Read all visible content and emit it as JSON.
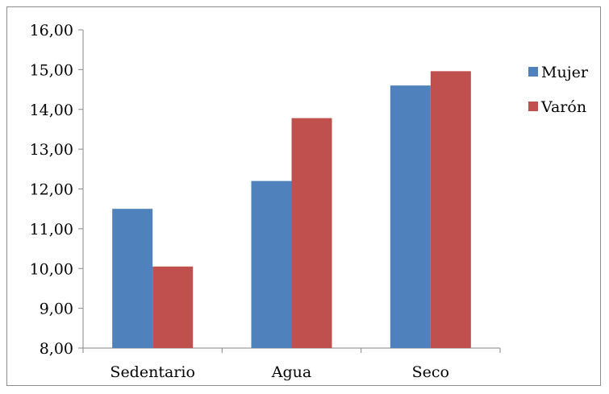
{
  "chart_data": {
    "type": "bar",
    "title": "",
    "xlabel": "",
    "ylabel": "",
    "categories": [
      "Sedentario",
      "Agua",
      "Seco"
    ],
    "series": [
      {
        "name": "Mujer",
        "color": "#4f81bd",
        "values": [
          11.5,
          12.2,
          14.6
        ]
      },
      {
        "name": "Varón",
        "color": "#c0504d",
        "values": [
          10.05,
          13.78,
          14.96
        ]
      }
    ],
    "ylim": [
      8,
      16
    ],
    "yticks": [
      "8,00",
      "9,00",
      "10,00",
      "11,00",
      "12,00",
      "13,00",
      "14,00",
      "15,00",
      "16,00"
    ],
    "ytick_values": [
      8,
      9,
      10,
      11,
      12,
      13,
      14,
      15,
      16
    ],
    "grid": false,
    "legend": "right"
  }
}
